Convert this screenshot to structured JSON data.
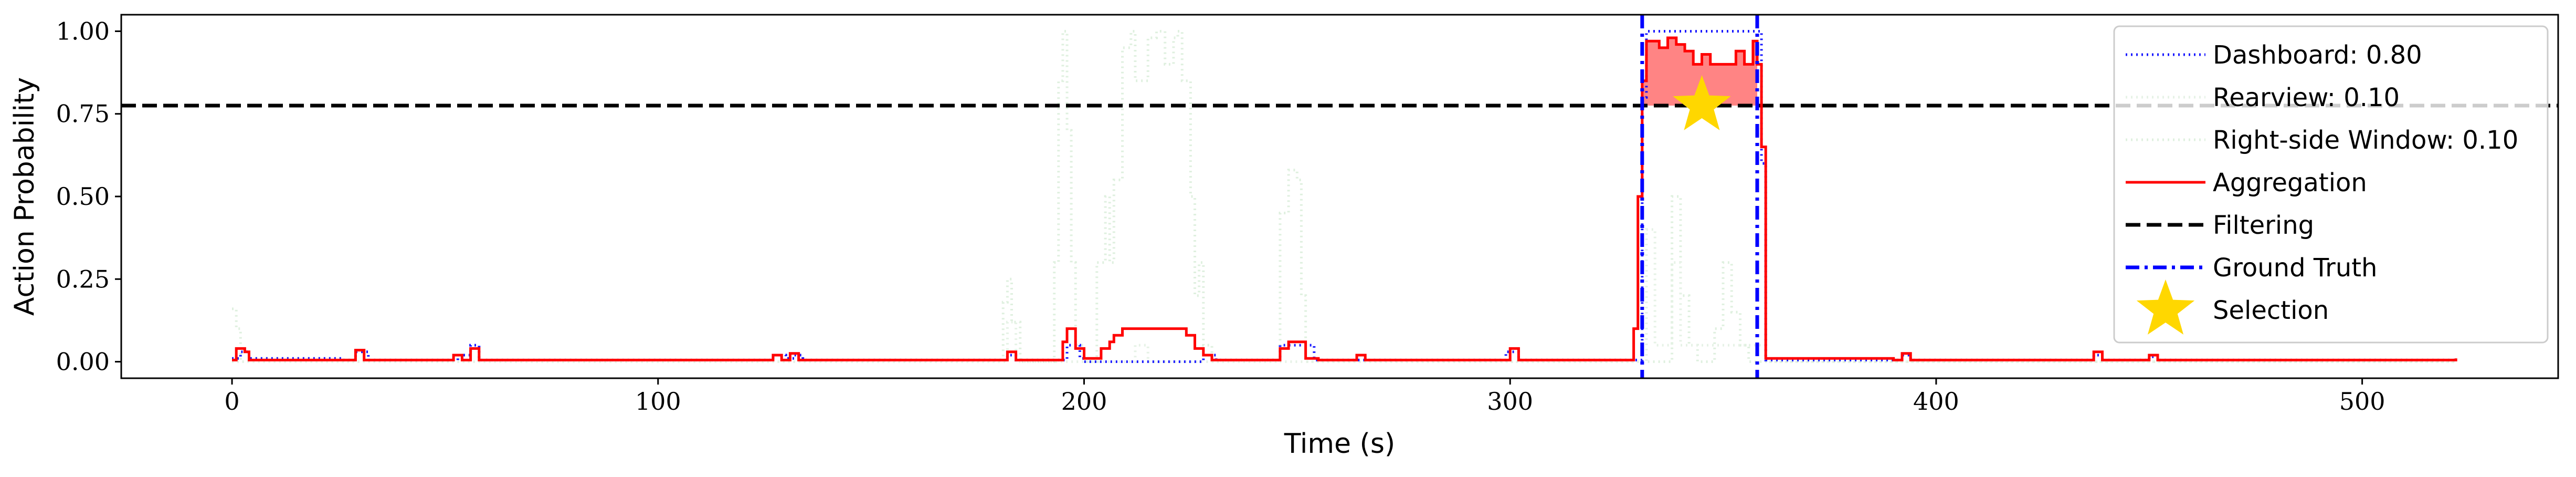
{
  "chart_data": {
    "type": "line",
    "xlabel": "Time (s)",
    "ylabel": "Action Probability",
    "xlim": [
      -26,
      546
    ],
    "ylim": [
      -0.05,
      1.05
    ],
    "x_ticks": [
      0,
      100,
      200,
      300,
      400,
      500
    ],
    "y_ticks": [
      0.0,
      0.25,
      0.5,
      0.75,
      1.0
    ],
    "x_tick_labels": [
      "0",
      "100",
      "200",
      "300",
      "400",
      "500"
    ],
    "y_tick_labels": [
      "0.00",
      "0.25",
      "0.50",
      "0.75",
      "1.00"
    ],
    "grid": false,
    "legend_position": "top-right",
    "series": [
      {
        "name": "Dashboard: 0.80",
        "style": "dotted",
        "color": "#0000ff",
        "opacity": 0.9,
        "points": [
          [
            0,
            0.01
          ],
          [
            2,
            0.03
          ],
          [
            4,
            0.01
          ],
          [
            26,
            0.005
          ],
          [
            29,
            0.03
          ],
          [
            32,
            0.005
          ],
          [
            50,
            0.005
          ],
          [
            53,
            0.02
          ],
          [
            56,
            0.05
          ],
          [
            58,
            0.005
          ],
          [
            124,
            0.005
          ],
          [
            127,
            0.02
          ],
          [
            130,
            0.01
          ],
          [
            132,
            0.02
          ],
          [
            134,
            0.005
          ],
          [
            180,
            0.005
          ],
          [
            182,
            0.02
          ],
          [
            184,
            0.005
          ],
          [
            194,
            0.005
          ],
          [
            196,
            0.05
          ],
          [
            199,
            0.01
          ],
          [
            200,
            0.0
          ],
          [
            224,
            0.0
          ],
          [
            228,
            0.02
          ],
          [
            231,
            0.005
          ],
          [
            244,
            0.005
          ],
          [
            246,
            0.05
          ],
          [
            252,
            0.05
          ],
          [
            254,
            0.005
          ],
          [
            297,
            0.005
          ],
          [
            299,
            0.03
          ],
          [
            302,
            0.005
          ],
          [
            328,
            0.005
          ],
          [
            331,
            0.8
          ],
          [
            332,
            1.0
          ],
          [
            358,
            1.0
          ],
          [
            359,
            0.6
          ],
          [
            360,
            0.005
          ],
          [
            390,
            0.005
          ],
          [
            392,
            0.02
          ],
          [
            394,
            0.005
          ],
          [
            435,
            0.005
          ],
          [
            437,
            0.02
          ],
          [
            439,
            0.005
          ],
          [
            448,
            0.005
          ],
          [
            450,
            0.015
          ],
          [
            452,
            0.005
          ],
          [
            522,
            0.01
          ]
        ]
      },
      {
        "name": "Rearview: 0.10",
        "style": "dotted",
        "color": "#e6f2e6",
        "opacity": 1.0,
        "points": [
          [
            0,
            0.0
          ],
          [
            180,
            0.0
          ],
          [
            182,
            0.12
          ],
          [
            184,
            0.0
          ],
          [
            210,
            0.0
          ],
          [
            212,
            0.05
          ],
          [
            215,
            0.0
          ],
          [
            330,
            0.0
          ],
          [
            332,
            0.4
          ],
          [
            334,
            0.05
          ],
          [
            338,
            0.3
          ],
          [
            340,
            0.05
          ],
          [
            358,
            0.05
          ],
          [
            360,
            0.0
          ],
          [
            522,
            0.0
          ]
        ]
      },
      {
        "name": "Right-side Window: 0.10",
        "style": "dotted",
        "color": "#dff0df",
        "opacity": 1.0,
        "points": [
          [
            0,
            0.16
          ],
          [
            1,
            0.1
          ],
          [
            2,
            0.0
          ],
          [
            179,
            0.0
          ],
          [
            181,
            0.18
          ],
          [
            182,
            0.25
          ],
          [
            183,
            0.12
          ],
          [
            185,
            0.0
          ],
          [
            191,
            0.0
          ],
          [
            193,
            0.3
          ],
          [
            194,
            0.85
          ],
          [
            195,
            1.0
          ],
          [
            196,
            0.7
          ],
          [
            197,
            0.3
          ],
          [
            198,
            0.05
          ],
          [
            200,
            0.0
          ],
          [
            203,
            0.3
          ],
          [
            205,
            0.5
          ],
          [
            206,
            0.3
          ],
          [
            207,
            0.55
          ],
          [
            209,
            0.95
          ],
          [
            211,
            1.0
          ],
          [
            212,
            0.85
          ],
          [
            214,
            0.85
          ],
          [
            215,
            0.98
          ],
          [
            217,
            1.0
          ],
          [
            219,
            0.9
          ],
          [
            221,
            0.98
          ],
          [
            222,
            1.0
          ],
          [
            223,
            0.85
          ],
          [
            225,
            0.5
          ],
          [
            226,
            0.2
          ],
          [
            227,
            0.3
          ],
          [
            228,
            0.05
          ],
          [
            230,
            0.0
          ],
          [
            244,
            0.0
          ],
          [
            246,
            0.45
          ],
          [
            248,
            0.58
          ],
          [
            250,
            0.55
          ],
          [
            251,
            0.2
          ],
          [
            252,
            0.0
          ],
          [
            336,
            0.0
          ],
          [
            338,
            0.5
          ],
          [
            340,
            0.2
          ],
          [
            342,
            0.05
          ],
          [
            344,
            0.0
          ],
          [
            346,
            0.0
          ],
          [
            348,
            0.1
          ],
          [
            350,
            0.3
          ],
          [
            352,
            0.15
          ],
          [
            354,
            0.05
          ],
          [
            356,
            0.0
          ],
          [
            522,
            0.0
          ]
        ]
      },
      {
        "name": "Aggregation",
        "style": "solid",
        "color": "#ff0000",
        "opacity": 1.0,
        "points": [
          [
            0,
            0.005
          ],
          [
            1,
            0.04
          ],
          [
            3,
            0.03
          ],
          [
            4,
            0.005
          ],
          [
            27,
            0.005
          ],
          [
            29,
            0.035
          ],
          [
            31,
            0.005
          ],
          [
            50,
            0.005
          ],
          [
            52,
            0.02
          ],
          [
            54,
            0.005
          ],
          [
            56,
            0.04
          ],
          [
            58,
            0.005
          ],
          [
            125,
            0.005
          ],
          [
            127,
            0.02
          ],
          [
            129,
            0.005
          ],
          [
            131,
            0.025
          ],
          [
            133,
            0.005
          ],
          [
            180,
            0.005
          ],
          [
            182,
            0.03
          ],
          [
            184,
            0.005
          ],
          [
            194,
            0.005
          ],
          [
            195,
            0.06
          ],
          [
            196,
            0.1
          ],
          [
            198,
            0.04
          ],
          [
            200,
            0.01
          ],
          [
            204,
            0.04
          ],
          [
            206,
            0.06
          ],
          [
            207,
            0.08
          ],
          [
            209,
            0.1
          ],
          [
            222,
            0.1
          ],
          [
            224,
            0.08
          ],
          [
            226,
            0.04
          ],
          [
            228,
            0.02
          ],
          [
            230,
            0.005
          ],
          [
            245,
            0.005
          ],
          [
            246,
            0.04
          ],
          [
            248,
            0.06
          ],
          [
            251,
            0.06
          ],
          [
            252,
            0.01
          ],
          [
            255,
            0.005
          ],
          [
            262,
            0.005
          ],
          [
            264,
            0.02
          ],
          [
            266,
            0.005
          ],
          [
            298,
            0.005
          ],
          [
            300,
            0.04
          ],
          [
            302,
            0.005
          ],
          [
            328,
            0.005
          ],
          [
            329,
            0.1
          ],
          [
            330,
            0.5
          ],
          [
            331,
            0.85
          ],
          [
            332,
            0.97
          ],
          [
            335,
            0.95
          ],
          [
            337,
            0.98
          ],
          [
            339,
            0.96
          ],
          [
            341,
            0.94
          ],
          [
            343,
            0.9
          ],
          [
            345,
            0.93
          ],
          [
            347,
            0.9
          ],
          [
            352,
            0.9
          ],
          [
            353,
            0.94
          ],
          [
            355,
            0.9
          ],
          [
            357,
            0.97
          ],
          [
            358,
            0.9
          ],
          [
            359,
            0.65
          ],
          [
            360,
            0.01
          ],
          [
            390,
            0.005
          ],
          [
            392,
            0.025
          ],
          [
            394,
            0.005
          ],
          [
            435,
            0.005
          ],
          [
            437,
            0.03
          ],
          [
            439,
            0.005
          ],
          [
            448,
            0.005
          ],
          [
            450,
            0.02
          ],
          [
            452,
            0.005
          ],
          [
            520,
            0.005
          ],
          [
            522,
            0.01
          ]
        ]
      },
      {
        "name": "Filtering",
        "style": "dashed",
        "color": "#000000",
        "opacity": 1.0,
        "value": 0.775
      },
      {
        "name": "Ground Truth",
        "style": "dashdot",
        "color": "#0000ff",
        "opacity": 1.0,
        "vlines": [
          331,
          358
        ]
      },
      {
        "name": "Selection",
        "style": "marker-star",
        "color": "#ffd700",
        "opacity": 1.0,
        "points": [
          [
            345,
            0.775
          ]
        ]
      }
    ],
    "highlight_fill": {
      "color": "#ff5050",
      "opacity": 0.7,
      "x_start": 331,
      "x_end": 358,
      "y_base": 0.775
    }
  }
}
